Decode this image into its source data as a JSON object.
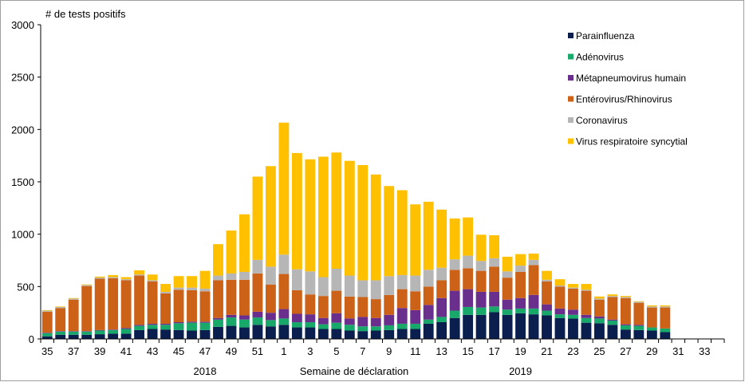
{
  "chart_data": {
    "type": "bar",
    "stacked": true,
    "ylabel": "# de tests positifs",
    "xlabel": "Semaine de déclaration",
    "year_labels": [
      {
        "label": "2018",
        "at_week": "47"
      },
      {
        "label": "2019",
        "at_week": "19"
      }
    ],
    "ylim": [
      0,
      3000
    ],
    "y_ticks": [
      0,
      500,
      1000,
      1500,
      2000,
      2500,
      3000
    ],
    "grid": false,
    "legend_position": "top-right",
    "categories": [
      "35",
      "36",
      "37",
      "38",
      "39",
      "40",
      "41",
      "42",
      "43",
      "44",
      "45",
      "46",
      "47",
      "48",
      "49",
      "50",
      "51",
      "52",
      "1",
      "2",
      "3",
      "4",
      "5",
      "6",
      "7",
      "8",
      "9",
      "10",
      "11",
      "12",
      "13",
      "14",
      "15",
      "16",
      "17",
      "18",
      "19",
      "20",
      "21",
      "22",
      "23",
      "24",
      "25",
      "26",
      "27",
      "28",
      "29",
      "30",
      "31",
      "32",
      "33",
      "34"
    ],
    "x_tick_labels": [
      "35",
      "37",
      "39",
      "41",
      "43",
      "45",
      "47",
      "49",
      "51",
      "1",
      "3",
      "5",
      "7",
      "9",
      "11",
      "13",
      "15",
      "17",
      "19",
      "21",
      "23",
      "25",
      "27",
      "29",
      "31",
      "33"
    ],
    "series": [
      {
        "name": "Parainfluenza",
        "color": "#0b1f4f",
        "values": [
          25,
          40,
          40,
          40,
          45,
          50,
          50,
          85,
          95,
          90,
          85,
          80,
          85,
          115,
          125,
          110,
          135,
          120,
          135,
          110,
          110,
          95,
          95,
          80,
          75,
          80,
          85,
          95,
          95,
          145,
          160,
          200,
          230,
          230,
          255,
          230,
          245,
          235,
          225,
          200,
          195,
          155,
          150,
          135,
          90,
          85,
          80,
          65,
          0,
          0,
          0,
          0
        ]
      },
      {
        "name": "Adénovirus",
        "color": "#17a86a",
        "values": [
          30,
          30,
          30,
          30,
          35,
          35,
          45,
          40,
          40,
          45,
          65,
          75,
          70,
          70,
          80,
          75,
          70,
          60,
          60,
          50,
          50,
          45,
          60,
          55,
          45,
          40,
          45,
          50,
          50,
          40,
          50,
          70,
          75,
          70,
          55,
          50,
          45,
          55,
          45,
          35,
          35,
          45,
          45,
          40,
          40,
          40,
          30,
          35,
          0,
          0,
          0,
          0
        ]
      },
      {
        "name": "Métapneumovirus humain",
        "color": "#6a2e8c",
        "values": [
          5,
          5,
          5,
          5,
          5,
          5,
          10,
          10,
          10,
          10,
          10,
          10,
          10,
          15,
          25,
          40,
          55,
          70,
          90,
          80,
          75,
          60,
          90,
          60,
          90,
          80,
          100,
          150,
          130,
          140,
          180,
          190,
          170,
          150,
          140,
          95,
          100,
          130,
          60,
          55,
          50,
          30,
          20,
          10,
          10,
          10,
          0,
          0,
          0,
          0,
          0,
          0
        ]
      },
      {
        "name": "Entérovirus/Rhinovirus",
        "color": "#cc6118",
        "values": [
          200,
          220,
          300,
          430,
          490,
          490,
          455,
          470,
          405,
          290,
          310,
          300,
          290,
          360,
          335,
          340,
          365,
          270,
          335,
          225,
          190,
          210,
          215,
          210,
          190,
          180,
          190,
          180,
          180,
          175,
          170,
          200,
          200,
          200,
          240,
          210,
          250,
          285,
          220,
          210,
          200,
          230,
          160,
          215,
          250,
          210,
          190,
          200,
          0,
          0,
          0,
          0
        ]
      },
      {
        "name": "Coronavirus",
        "color": "#b6b6b6",
        "values": [
          10,
          10,
          10,
          10,
          10,
          10,
          10,
          10,
          10,
          15,
          20,
          25,
          25,
          45,
          60,
          75,
          130,
          170,
          185,
          200,
          220,
          180,
          210,
          200,
          160,
          180,
          180,
          135,
          150,
          160,
          120,
          100,
          120,
          95,
          80,
          60,
          60,
          50,
          15,
          10,
          10,
          10,
          10,
          10,
          10,
          10,
          10,
          10,
          0,
          0,
          0,
          0
        ]
      },
      {
        "name": "Virus respiratoire syncytial",
        "color": "#ffc000",
        "values": [
          5,
          5,
          5,
          5,
          10,
          20,
          20,
          40,
          55,
          75,
          110,
          110,
          170,
          300,
          410,
          550,
          795,
          960,
          1260,
          1110,
          1070,
          1150,
          1110,
          1095,
          1100,
          1010,
          860,
          810,
          680,
          650,
          555,
          390,
          365,
          250,
          220,
          140,
          110,
          60,
          85,
          60,
          35,
          55,
          20,
          15,
          10,
          5,
          10,
          10,
          0,
          0,
          0,
          0
        ]
      }
    ]
  }
}
